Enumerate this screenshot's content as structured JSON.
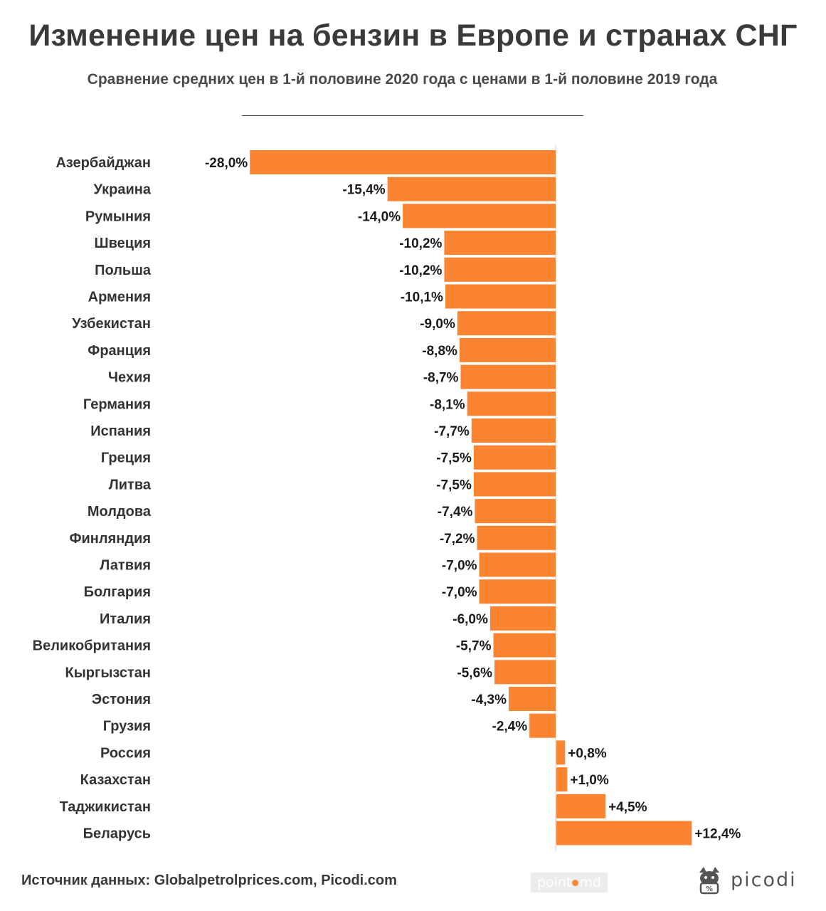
{
  "header": {
    "title": "Изменение цен на бензин в Европе и странах СНГ",
    "subtitle": "Сравнение средних цен в 1-й половине 2020 года с ценами в 1-й половине 2019 года"
  },
  "footer": {
    "source": "Источник данных: Globalpetrolprices.com, Picodi.com",
    "logo_point_left": "point",
    "logo_point_right": "md",
    "logo_picodi": "picodi"
  },
  "colors": {
    "bar": "#fb8432",
    "axis": "#cfcfcf",
    "label": "#333333",
    "value": "#1a1a1a"
  },
  "chart_data": {
    "type": "bar",
    "orientation": "horizontal",
    "categories": [
      "Азербайджан",
      "Украина",
      "Румыния",
      "Швеция",
      "Польша",
      "Армения",
      "Узбекистан",
      "Франция",
      "Чехия",
      "Германия",
      "Испания",
      "Греция",
      "Литва",
      "Молдова",
      "Финляндия",
      "Латвия",
      "Болгария",
      "Италия",
      "Великобритания",
      "Кыргызстан",
      "Эстония",
      "Грузия",
      "Россия",
      "Казахстан",
      "Таджикистан",
      "Беларусь"
    ],
    "values": [
      -28.0,
      -15.4,
      -14.0,
      -10.2,
      -10.2,
      -10.1,
      -9.0,
      -8.8,
      -8.7,
      -8.1,
      -7.7,
      -7.5,
      -7.5,
      -7.4,
      -7.2,
      -7.0,
      -7.0,
      -6.0,
      -5.7,
      -5.6,
      -4.3,
      -2.4,
      0.8,
      1.0,
      4.5,
      12.4
    ],
    "data_labels": [
      "-28,0%",
      "-15,4%",
      "-14,0%",
      "-10,2%",
      "-10,2%",
      "-10,1%",
      "-9,0%",
      "-8,8%",
      "-8,7%",
      "-8,1%",
      "-7,7%",
      "-7,5%",
      "-7,5%",
      "-7,4%",
      "-7,2%",
      "-7,0%",
      "-7,0%",
      "-6,0%",
      "-5,7%",
      "-5,6%",
      "-4,3%",
      "-2,4%",
      "+0,8%",
      "+1,0%",
      "+4,5%",
      "+12,4%"
    ],
    "xlim": [
      -28.0,
      12.4
    ],
    "grid": false,
    "legend": "none"
  }
}
